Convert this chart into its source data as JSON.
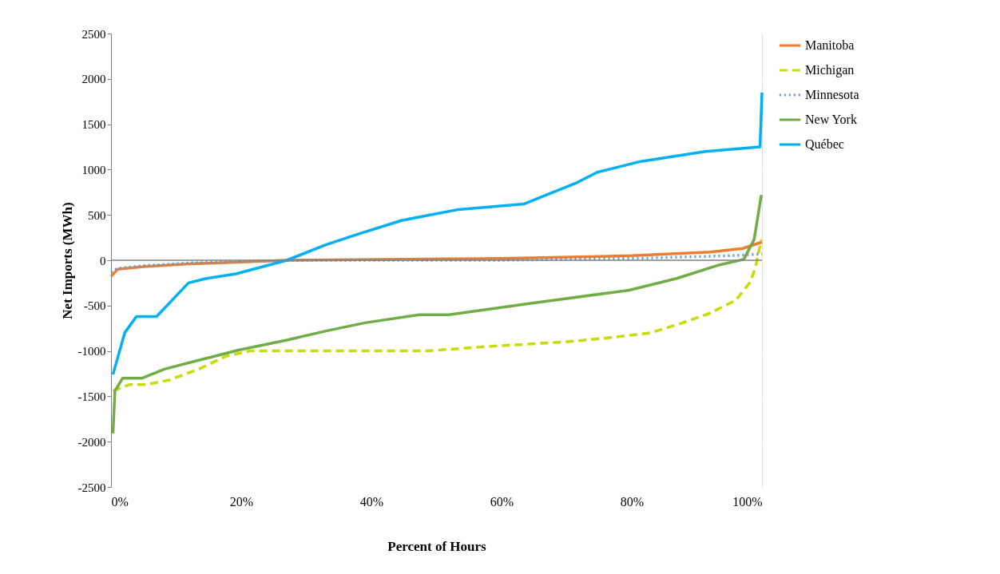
{
  "chart_data": {
    "type": "line",
    "xlabel": "Percent of Hours",
    "ylabel": "Net Imports (MWh)",
    "xlim": [
      0,
      100
    ],
    "xticks": [
      {
        "value": 0,
        "label": "0%"
      },
      {
        "value": 20,
        "label": "20%"
      },
      {
        "value": 40,
        "label": "40%"
      },
      {
        "value": 60,
        "label": "60%"
      },
      {
        "value": 80,
        "label": "80%"
      },
      {
        "value": 100,
        "label": "100%"
      }
    ],
    "ylim": [
      -2500,
      2500
    ],
    "yticks": [
      -2500,
      -2000,
      -1500,
      -1000,
      -500,
      0,
      500,
      1000,
      1500,
      2000,
      2500
    ],
    "grid": "y",
    "legend": "right",
    "ref_lines": [
      {
        "axis": "y",
        "value": 0,
        "color": "#808080"
      }
    ],
    "series": [
      {
        "name": "Manitoba",
        "color": "#ed7d31",
        "line_style": "solid",
        "x": [
          0,
          1,
          5,
          12,
          20,
          27,
          45,
          60,
          80,
          92,
          97,
          100
        ],
        "values": [
          -180,
          -100,
          -70,
          -40,
          -20,
          0,
          10,
          20,
          50,
          90,
          130,
          200
        ]
      },
      {
        "name": "Michigan",
        "color": "#c9dc00",
        "line_style": "dashed",
        "x": [
          0.3,
          2.9,
          5.4,
          9,
          13.5,
          17.6,
          21.3,
          30,
          48.6,
          58,
          69.8,
          77.1,
          82.9,
          87.8,
          91.8,
          96,
          98.2,
          99,
          99.9
        ],
        "values": [
          -1440,
          -1370,
          -1370,
          -1320,
          -1200,
          -1060,
          -1000,
          -1000,
          -1000,
          -950,
          -900,
          -850,
          -800,
          -690,
          -590,
          -440,
          -240,
          -80,
          230
        ]
      },
      {
        "name": "Minnesota",
        "color": "#5b9bd5",
        "line_style": "dotted",
        "x": [
          0,
          1,
          5,
          12,
          22,
          30,
          60,
          80,
          95,
          100
        ],
        "values": [
          -130,
          -90,
          -60,
          -30,
          -10,
          0,
          0,
          20,
          50,
          70
        ]
      },
      {
        "name": "New York",
        "color": "#70ad47",
        "line_style": "solid",
        "x": [
          0.3,
          0.6,
          1.8,
          4.8,
          8.2,
          14.7,
          19.6,
          27,
          33,
          39,
          47.4,
          51.9,
          64.9,
          79.6,
          86.9,
          93.5,
          97.2,
          98.8,
          99.9
        ],
        "values": [
          -1910,
          -1440,
          -1300,
          -1300,
          -1200,
          -1080,
          -990,
          -880,
          -780,
          -690,
          -600,
          -600,
          -470,
          -330,
          -200,
          -50,
          10,
          230,
          720
        ]
      },
      {
        "name": "Québec",
        "color": "#00b0f0",
        "line_style": "solid",
        "x": [
          0.3,
          2.1,
          3.9,
          7,
          11.9,
          14.7,
          19.2,
          27,
          33,
          38,
          44.7,
          53.4,
          63.4,
          71.4,
          74.7,
          81.4,
          91.3,
          99.7,
          100
        ],
        "values": [
          -1260,
          -800,
          -620,
          -620,
          -250,
          -200,
          -150,
          0,
          170,
          290,
          440,
          560,
          620,
          850,
          970,
          1090,
          1200,
          1250,
          1850
        ]
      }
    ]
  }
}
